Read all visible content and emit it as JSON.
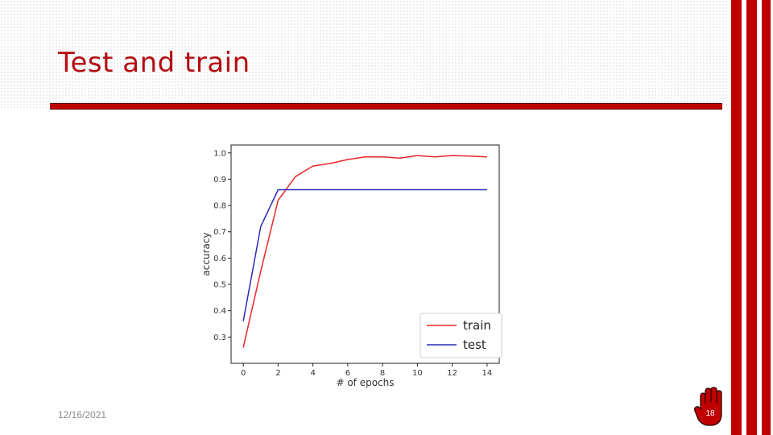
{
  "slide": {
    "title": "Test and train",
    "date": "12/16/2021",
    "page_number": "18"
  },
  "colors": {
    "accent": "#c00000",
    "title": "#b30d12",
    "train": "#e8262a",
    "test": "#2a2ab8"
  },
  "icons": {
    "corner": "raised-hand-icon"
  },
  "chart_data": {
    "type": "line",
    "xlabel": "# of epochs",
    "ylabel": "accuracy",
    "xlim": [
      -0.7,
      14.7
    ],
    "ylim": [
      0.2,
      1.03
    ],
    "xticks": [
      0,
      2,
      4,
      6,
      8,
      10,
      12,
      14
    ],
    "xtick_labels": [
      "0",
      "2",
      "4",
      "6",
      "8",
      "10",
      "12",
      "14"
    ],
    "yticks": [
      0.3,
      0.4,
      0.5,
      0.6,
      0.7,
      0.8,
      0.9,
      1.0
    ],
    "ytick_labels": [
      "0.3",
      "0.4",
      "0.5",
      "0.6",
      "0.7",
      "0.8",
      "0.9",
      "1.0"
    ],
    "legend_position": "lower-right",
    "grid": false,
    "series": [
      {
        "name": "train",
        "color": "#e8262a",
        "x": [
          0,
          1,
          2,
          3,
          4,
          5,
          6,
          7,
          8,
          9,
          10,
          11,
          12,
          13,
          14
        ],
        "y": [
          0.26,
          0.55,
          0.82,
          0.91,
          0.95,
          0.96,
          0.975,
          0.985,
          0.985,
          0.98,
          0.99,
          0.985,
          0.99,
          0.988,
          0.985
        ]
      },
      {
        "name": "test",
        "color": "#2a2ab8",
        "x": [
          0,
          1,
          2,
          3,
          4,
          5,
          6,
          7,
          8,
          9,
          10,
          11,
          12,
          13,
          14
        ],
        "y": [
          0.36,
          0.72,
          0.86,
          0.86,
          0.86,
          0.86,
          0.86,
          0.86,
          0.86,
          0.86,
          0.86,
          0.86,
          0.86,
          0.86,
          0.86
        ]
      }
    ]
  }
}
